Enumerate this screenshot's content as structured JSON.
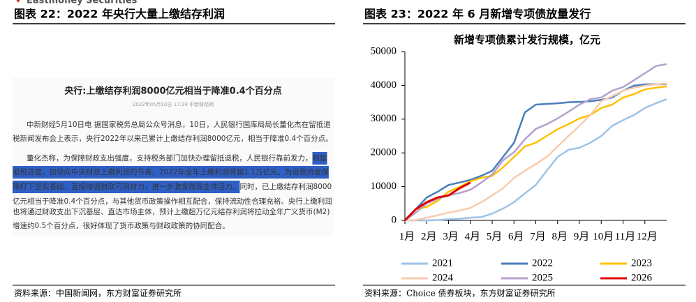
{
  "brand": "Eastmoney Securities",
  "figure_left": {
    "title": "图表 22：2022 年央行大量上缴结存利润",
    "headline": "央行:上缴结存利润8000亿元相当于降准0.4个百分点",
    "meta": "2022年05月10日 17:24 中新财经网",
    "paragraphs": [
      [
        [
          "中新财经5月10日电 据国家税务总局公众号消息，10日，人民银行国库局局长董化杰在留抵退"
        ],
        [
          "税新闻发布会上表示，央行2022年以来已累计上缴结存利润8000亿元，相当于降准0.4个百分点。"
        ]
      ],
      [
        [
          "董化杰称，为保障财政支出强度，支持税务部门加快办理留抵退税，人民银行靠前发力，",
          {
            "text": "根据",
            "highlight": true
          }
        ],
        [
          {
            "text": "退税进度，加快向中央财政上缴利润的节奏，2022年全年上缴利润将超1.1万亿元，为退税资金保",
            "highlight": true
          }
        ],
        [
          {
            "text": "障打下坚实基础，直接增强财政可用财力，进一步激发微观主体活力。",
            "highlight": true
          },
          "同时，已上缴结存利润8000"
        ],
        [
          "亿元相当于降准0.4个百分点，与其他货币政策操作相互配合，保持流动性合理充裕。央行上缴利润"
        ],
        [
          "也将通过财政支出下沉基层、直达市场主体，预计上缴超万亿元结存利润将拉动全年广义货币(M2)"
        ],
        [
          "增速约0.5个百分点，很好体现了货币政策与财政政策的协同配合。"
        ]
      ]
    ],
    "source": "资料来源：中国新闻网，东方财富证券研究所"
  },
  "chart_data": {
    "type": "line",
    "figure_title": "图表 23：2022 年 6 月新增专项债放量发行",
    "title": "新增专项债累计发行规模，亿元",
    "source": "资料来源：Choice 债券板块，东方财富证券研究所",
    "x": [
      1,
      1.5,
      2,
      2.5,
      3,
      3.5,
      4,
      4.5,
      5,
      5.5,
      6,
      6.5,
      7,
      7.5,
      8,
      8.5,
      9,
      9.5,
      10,
      10.5,
      11,
      11.5,
      12,
      12.5,
      13
    ],
    "xlim": [
      1,
      13
    ],
    "xticks": [
      {
        "value": 1,
        "label": "1月"
      },
      {
        "value": 2,
        "label": "2月"
      },
      {
        "value": 3,
        "label": "3月"
      },
      {
        "value": 4,
        "label": "4月"
      },
      {
        "value": 5,
        "label": "5月"
      },
      {
        "value": 6,
        "label": "6月"
      },
      {
        "value": 7,
        "label": "7月"
      },
      {
        "value": 8,
        "label": "8月"
      },
      {
        "value": 9,
        "label": "9月"
      },
      {
        "value": 10,
        "label": "10月"
      },
      {
        "value": 11,
        "label": "11月"
      },
      {
        "value": 12,
        "label": "12月"
      }
    ],
    "ylim": [
      0,
      50000
    ],
    "yticks": [
      0,
      10000,
      20000,
      30000,
      40000,
      50000
    ],
    "series": [
      {
        "name": "2021",
        "color": "#9dc3e6",
        "values": [
          0,
          0,
          0,
          100,
          300,
          500,
          800,
          1000,
          2000,
          3500,
          5400,
          8000,
          10500,
          14700,
          18800,
          20900,
          21500,
          23000,
          25000,
          28000,
          29700,
          31200,
          33300,
          34700,
          35900
        ]
      },
      {
        "name": "2022",
        "color": "#4a7ebb",
        "values": [
          0,
          3300,
          6800,
          8500,
          10500,
          11200,
          12000,
          13200,
          14700,
          18800,
          23000,
          32000,
          34300,
          34500,
          34700,
          35000,
          35100,
          35300,
          35700,
          36400,
          38400,
          39900,
          40300,
          40300,
          40300
        ]
      },
      {
        "name": "2023",
        "color": "#ffc000",
        "values": [
          0,
          3300,
          4000,
          5800,
          8500,
          9900,
          11600,
          12600,
          13200,
          15700,
          18800,
          21900,
          23000,
          25000,
          27000,
          28500,
          30200,
          31200,
          33300,
          34300,
          36400,
          37400,
          38800,
          39300,
          39700
        ]
      },
      {
        "name": "2024",
        "color": "#f8cbad",
        "values": [
          0,
          100,
          800,
          1500,
          2300,
          2900,
          3700,
          5400,
          7400,
          9500,
          12600,
          14700,
          16700,
          18800,
          21900,
          25000,
          28000,
          31200,
          35300,
          36800,
          38400,
          39300,
          39900,
          40300,
          40500
        ]
      },
      {
        "name": "2025",
        "color": "#b4a0cc",
        "values": [
          0,
          2300,
          5000,
          6400,
          7400,
          8100,
          9100,
          11200,
          13600,
          17800,
          20200,
          24000,
          27100,
          28500,
          30200,
          32200,
          34300,
          35900,
          36400,
          38400,
          39500,
          41500,
          43600,
          45700,
          46300
        ]
      },
      {
        "name": "2026",
        "color": "#e00000",
        "values": [
          0,
          3300,
          5400,
          6800,
          7400,
          9500,
          11200,
          null,
          null,
          null,
          null,
          null,
          null,
          null,
          null,
          null,
          null,
          null,
          null,
          null,
          null,
          null,
          null,
          null,
          null
        ]
      }
    ]
  }
}
